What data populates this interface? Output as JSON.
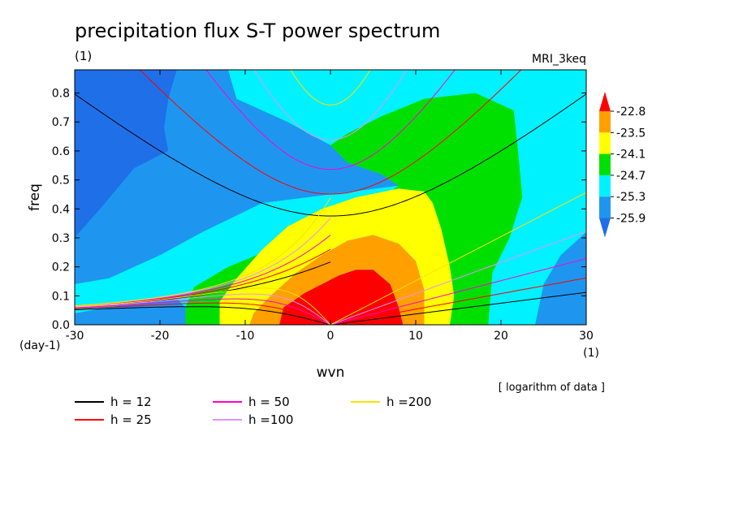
{
  "chart_data": {
    "type": "heatmap",
    "title": "precipitation flux S-T power spectrum",
    "subtitle": "(1)",
    "model_label": "MRI_3keq",
    "xlabel": "wvn",
    "ylabel": "freq",
    "x_unit": "(1)",
    "y_unit": "(day-1)",
    "xlim": [
      -30,
      30
    ],
    "ylim": [
      0,
      0.88
    ],
    "x_ticks": [
      "-30",
      "-20",
      "-10",
      "0",
      "10",
      "20",
      "30"
    ],
    "x_tick_values": [
      -30,
      -20,
      -10,
      0,
      10,
      20,
      30
    ],
    "y_ticks": [
      "0.0",
      "0.1",
      "0.2",
      "0.3",
      "0.4",
      "0.5",
      "0.6",
      "0.7",
      "0.8"
    ],
    "y_tick_values": [
      0,
      0.1,
      0.2,
      0.3,
      0.4,
      0.5,
      0.6,
      0.7,
      0.8
    ],
    "note": "[ logarithm of data ]",
    "colorbar": {
      "levels": [
        "-22.8",
        "-23.5",
        "-24.1",
        "-24.7",
        "-25.3",
        "-25.9"
      ],
      "level_values": [
        -22.8,
        -23.5,
        -24.1,
        -24.7,
        -25.3,
        -25.9
      ],
      "colors": [
        "#1f6fe8",
        "#1e96f0",
        "#00f2ff",
        "#00e000",
        "#ffff00",
        "#ffa000",
        "#ff0000"
      ]
    },
    "contour_regions": [
      {
        "level": "< -25.9",
        "color": "#1f6fe8",
        "shape": [
          [
            -30,
            0.88
          ],
          [
            -18,
            0.88
          ],
          [
            -19,
            0.78
          ],
          [
            -19.5,
            0.68
          ],
          [
            -19,
            0.6
          ],
          [
            -23,
            0.54
          ],
          [
            -27,
            0.4
          ],
          [
            -30,
            0.3
          ]
        ]
      },
      {
        "level": "-25.9 to -25.3",
        "color": "#1e96f0",
        "shape": [
          [
            -18,
            0.88
          ],
          [
            -12,
            0.88
          ],
          [
            -11,
            0.78
          ],
          [
            -5,
            0.7
          ],
          [
            0,
            0.62
          ],
          [
            2,
            0.56
          ],
          [
            6,
            0.52
          ],
          [
            8,
            0.48
          ],
          [
            -8,
            0.42
          ],
          [
            -15,
            0.32
          ],
          [
            -20,
            0.24
          ],
          [
            -26,
            0.16
          ],
          [
            -30,
            0.14
          ],
          [
            -30,
            0.3
          ],
          [
            -27,
            0.4
          ],
          [
            -23,
            0.54
          ],
          [
            -19,
            0.6
          ],
          [
            -19.5,
            0.68
          ],
          [
            -19,
            0.78
          ]
        ]
      },
      {
        "level": "-25.9 to -25.3",
        "color": "#1e96f0",
        "shape": [
          [
            -30,
            0.04
          ],
          [
            -24,
            0.07
          ],
          [
            -18,
            0.09
          ],
          [
            -17,
            0.06
          ],
          [
            -17,
            0
          ],
          [
            -30,
            0
          ]
        ]
      },
      {
        "level": "-25.9 to -25.3",
        "color": "#1e96f0",
        "shape": [
          [
            24,
            0
          ],
          [
            25,
            0.14
          ],
          [
            27,
            0.24
          ],
          [
            30,
            0.32
          ],
          [
            30,
            0
          ]
        ]
      },
      {
        "level": "-25.3 to -24.7",
        "color": "#00f2ff",
        "shape": [
          [
            -12,
            0.88
          ],
          [
            30,
            0.88
          ],
          [
            30,
            0.32
          ],
          [
            27,
            0.24
          ],
          [
            25,
            0.14
          ],
          [
            24,
            0
          ],
          [
            18.5,
            0
          ],
          [
            19,
            0.18
          ],
          [
            21,
            0.3
          ],
          [
            22.5,
            0.44
          ],
          [
            22,
            0.6
          ],
          [
            21.5,
            0.74
          ],
          [
            17,
            0.8
          ],
          [
            11,
            0.78
          ],
          [
            6,
            0.72
          ],
          [
            2,
            0.66
          ],
          [
            0,
            0.62
          ],
          [
            -5,
            0.7
          ],
          [
            -11,
            0.78
          ]
        ]
      },
      {
        "level": "-25.3 to -24.7",
        "color": "#00f2ff",
        "shape": [
          [
            -30,
            0.14
          ],
          [
            -26,
            0.16
          ],
          [
            -20,
            0.24
          ],
          [
            -15,
            0.32
          ],
          [
            -8,
            0.42
          ],
          [
            8,
            0.48
          ],
          [
            5,
            0.42
          ],
          [
            0,
            0.34
          ],
          [
            -7,
            0.26
          ],
          [
            -12,
            0.2
          ],
          [
            -16,
            0.13
          ],
          [
            -17,
            0.06
          ],
          [
            -18,
            0.09
          ],
          [
            -24,
            0.07
          ],
          [
            -30,
            0.04
          ]
        ]
      },
      {
        "level": "-24.7 to -24.1",
        "color": "#00e000",
        "shape": [
          [
            -17,
            0
          ],
          [
            -17,
            0.06
          ],
          [
            -16,
            0.13
          ],
          [
            -12,
            0.2
          ],
          [
            -7,
            0.26
          ],
          [
            0,
            0.34
          ],
          [
            5,
            0.42
          ],
          [
            8,
            0.48
          ],
          [
            6,
            0.52
          ],
          [
            2,
            0.56
          ],
          [
            0,
            0.62
          ],
          [
            2,
            0.66
          ],
          [
            6,
            0.72
          ],
          [
            11,
            0.78
          ],
          [
            17,
            0.8
          ],
          [
            21.5,
            0.74
          ],
          [
            22,
            0.6
          ],
          [
            22.5,
            0.44
          ],
          [
            21,
            0.3
          ],
          [
            19,
            0.18
          ],
          [
            18.5,
            0
          ],
          [
            14,
            0
          ],
          [
            14.5,
            0.1
          ],
          [
            14,
            0.2
          ],
          [
            13,
            0.33
          ],
          [
            12,
            0.42
          ],
          [
            11,
            0.46
          ],
          [
            8,
            0.47
          ],
          [
            3,
            0.44
          ],
          [
            -1,
            0.4
          ],
          [
            -5,
            0.34
          ],
          [
            -8,
            0.26
          ],
          [
            -11,
            0.16
          ],
          [
            -13,
            0.08
          ],
          [
            -13,
            0
          ]
        ]
      },
      {
        "level": "-24.1 to -23.5",
        "color": "#ffff00",
        "shape": [
          [
            -13,
            0
          ],
          [
            -13,
            0.08
          ],
          [
            -11,
            0.16
          ],
          [
            -8,
            0.26
          ],
          [
            -5,
            0.34
          ],
          [
            -1,
            0.4
          ],
          [
            3,
            0.44
          ],
          [
            8,
            0.47
          ],
          [
            11,
            0.46
          ],
          [
            12,
            0.42
          ],
          [
            13,
            0.33
          ],
          [
            14,
            0.2
          ],
          [
            14.5,
            0.1
          ],
          [
            14,
            0
          ],
          [
            11,
            0
          ],
          [
            11,
            0.12
          ],
          [
            10,
            0.22
          ],
          [
            8,
            0.28
          ],
          [
            5,
            0.31
          ],
          [
            2,
            0.29
          ],
          [
            -1,
            0.24
          ],
          [
            -4,
            0.18
          ],
          [
            -7,
            0.1
          ],
          [
            -9,
            0.04
          ],
          [
            -9.5,
            0
          ]
        ]
      },
      {
        "level": "-23.5 to -22.8",
        "color": "#ffa000",
        "shape": [
          [
            -9.5,
            0
          ],
          [
            -9,
            0.04
          ],
          [
            -7,
            0.1
          ],
          [
            -4,
            0.18
          ],
          [
            -1,
            0.24
          ],
          [
            2,
            0.29
          ],
          [
            5,
            0.31
          ],
          [
            8,
            0.28
          ],
          [
            10,
            0.22
          ],
          [
            11,
            0.12
          ],
          [
            11,
            0
          ],
          [
            8.5,
            0
          ],
          [
            8,
            0.06
          ],
          [
            7,
            0.14
          ],
          [
            5,
            0.19
          ],
          [
            3,
            0.19
          ],
          [
            1,
            0.17
          ],
          [
            -1,
            0.14
          ],
          [
            -3,
            0.11
          ],
          [
            -5.5,
            0.06
          ],
          [
            -6,
            0
          ]
        ]
      },
      {
        "level": "> -22.8",
        "color": "#ff0000",
        "shape": [
          [
            -6,
            0
          ],
          [
            -5.5,
            0.06
          ],
          [
            -3,
            0.11
          ],
          [
            -1,
            0.14
          ],
          [
            1,
            0.17
          ],
          [
            3,
            0.19
          ],
          [
            5,
            0.19
          ],
          [
            7,
            0.14
          ],
          [
            8,
            0.06
          ],
          [
            8.5,
            0
          ]
        ]
      }
    ],
    "dispersion_curves": [
      {
        "h": 12,
        "label": "h = 12",
        "color": "#000000"
      },
      {
        "h": 25,
        "label": "h = 25",
        "color": "#ff0000"
      },
      {
        "h": 50,
        "label": "h = 50",
        "color": "#ff00d0"
      },
      {
        "h": 100,
        "label": "h =100",
        "color": "#e890ff"
      },
      {
        "h": 200,
        "label": "h =200",
        "color": "#ffe000"
      }
    ],
    "legend_placement": "bottom"
  }
}
